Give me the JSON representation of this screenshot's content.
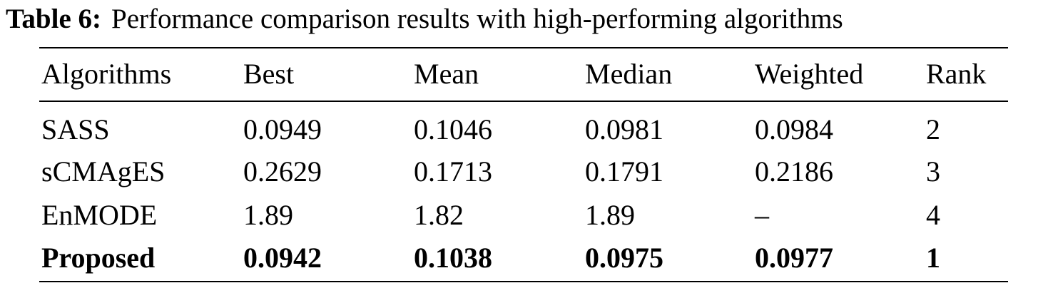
{
  "caption": {
    "label": "Table 6:",
    "text": "Performance comparison results with high-performing algorithms"
  },
  "table": {
    "headers": [
      "Algorithms",
      "Best",
      "Mean",
      "Median",
      "Weighted",
      "Rank"
    ],
    "rows": [
      [
        "SASS",
        "0.0949",
        "0.1046",
        "0.0981",
        "0.0984",
        "2"
      ],
      [
        "sCMAgES",
        "0.2629",
        "0.1713",
        "0.1791",
        "0.2186",
        "3"
      ],
      [
        "EnMODE",
        "1.89",
        "1.82",
        "1.89",
        "–",
        "4"
      ],
      [
        "Proposed",
        "0.0942",
        "0.1038",
        "0.0975",
        "0.0977",
        "1"
      ]
    ],
    "bold_row_index": 3
  }
}
